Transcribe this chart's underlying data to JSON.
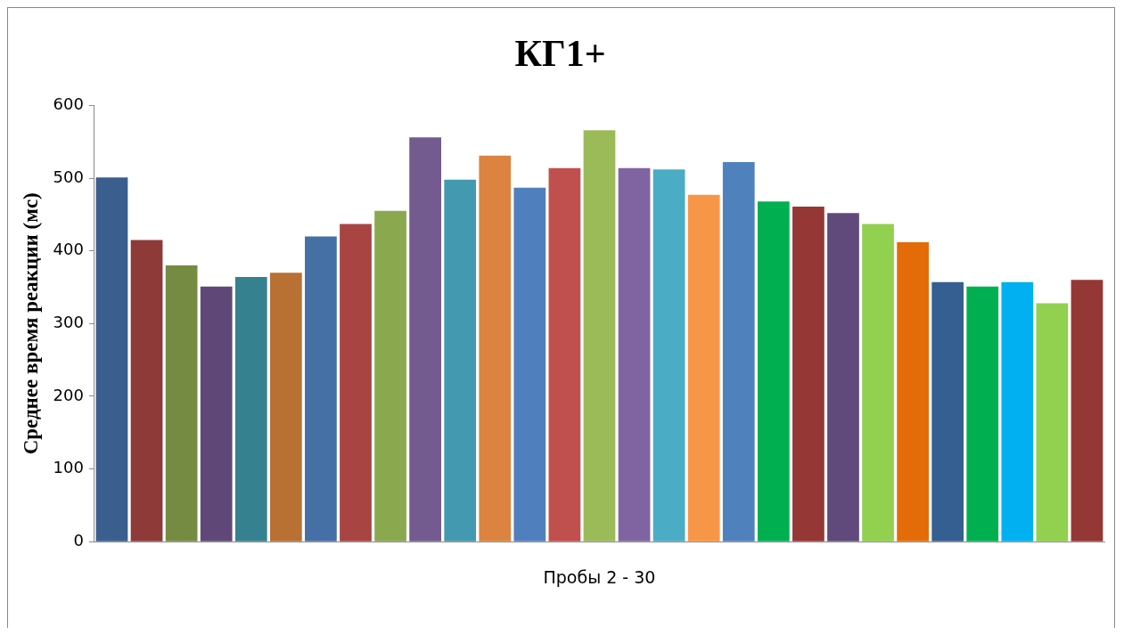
{
  "chart_data": {
    "type": "bar",
    "title": "КГ1+",
    "xlabel": "Пробы 2 - 30",
    "ylabel": "Среднее время реакции (мс)",
    "categories": [
      null,
      null,
      null,
      null,
      null,
      null,
      null,
      null,
      null,
      null,
      null,
      null,
      null,
      null,
      null,
      null,
      null,
      null,
      null,
      null,
      null,
      null,
      null,
      null,
      null,
      null,
      null,
      null,
      null
    ],
    "values": [
      503,
      417,
      382,
      353,
      366,
      372,
      422,
      439,
      457,
      558,
      500,
      533,
      489,
      516,
      568,
      516,
      514,
      479,
      524,
      470,
      463,
      454,
      439,
      414,
      359,
      353,
      359,
      330,
      362
    ],
    "colors": [
      "#3a5f8f",
      "#8e3a38",
      "#768b42",
      "#5f4878",
      "#35818f",
      "#b87033",
      "#4570a6",
      "#a84442",
      "#8aa84e",
      "#735a8f",
      "#4399b0",
      "#dc8340",
      "#4f80bd",
      "#c0504d",
      "#9bbb59",
      "#8064a2",
      "#4bacc6",
      "#f79646",
      "#4f81bd",
      "#00b050",
      "#953735",
      "#604a7b",
      "#92d050",
      "#e36c09",
      "#365f91",
      "#00b050",
      "#00b0f0",
      "#92d050",
      "#953735"
    ],
    "ylim": [
      0,
      600
    ],
    "yticks": [
      0,
      100,
      200,
      300,
      400,
      500,
      600
    ],
    "grid": false,
    "legend": false
  }
}
